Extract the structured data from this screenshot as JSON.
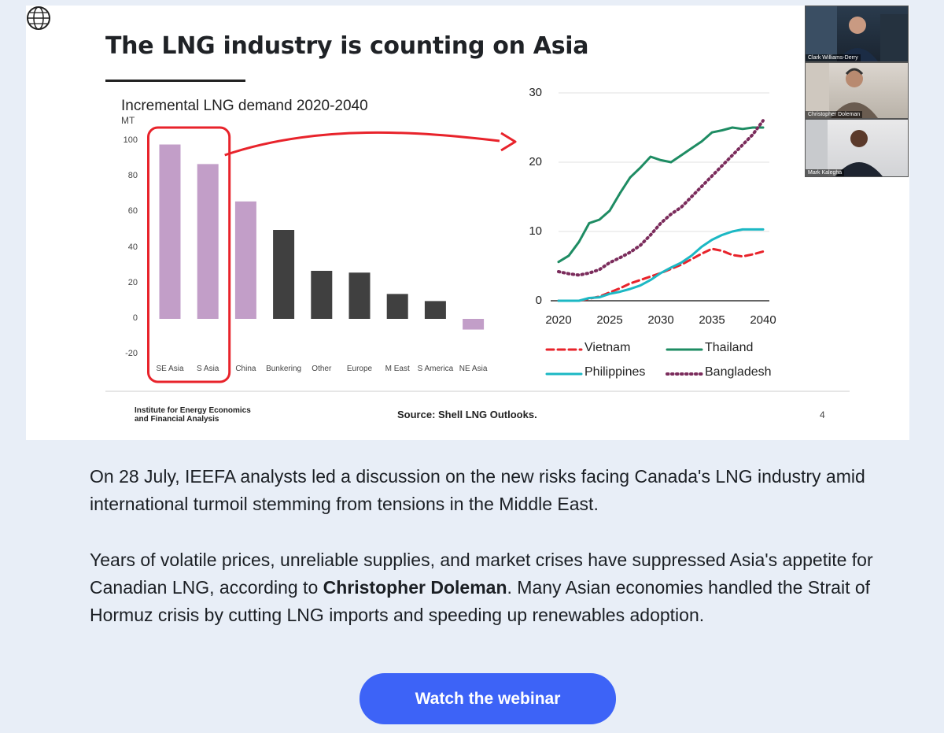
{
  "slide": {
    "title": "The LNG industry is counting on Asia",
    "source": "Source: Shell LNG Outlooks.",
    "page_number": "4",
    "org_name_line1": "Institute for Energy Economics",
    "org_name_line2": "and Financial Analysis"
  },
  "participants": [
    {
      "name": "Clark Williams-Derry"
    },
    {
      "name": "Christopher Doleman"
    },
    {
      "name": "Mark Kalegha"
    }
  ],
  "chart_data": [
    {
      "type": "bar",
      "title": "Incremental LNG demand 2020-2040",
      "ylabel": "MT",
      "ylim": [
        -20,
        100
      ],
      "yticks": [
        "100",
        "80",
        "60",
        "40",
        "20",
        "0",
        "-20"
      ],
      "categories": [
        "SE Asia",
        "S Asia",
        "China",
        "Bunkering",
        "Other",
        "Europe",
        "M East",
        "S America",
        "NE Asia"
      ],
      "values": [
        98,
        87,
        66,
        50,
        27,
        26,
        14,
        10,
        -6
      ],
      "colors": [
        "#c29ec8",
        "#c29ec8",
        "#c29ec8",
        "#404040",
        "#404040",
        "#404040",
        "#404040",
        "#404040",
        "#c29ec8"
      ],
      "highlight": [
        "SE Asia",
        "S Asia"
      ],
      "highlight_color": "#e8232b"
    },
    {
      "type": "line",
      "x": [
        2020,
        2021,
        2022,
        2023,
        2024,
        2025,
        2026,
        2027,
        2028,
        2029,
        2030,
        2031,
        2032,
        2033,
        2034,
        2035,
        2036,
        2037,
        2038,
        2039,
        2040
      ],
      "xticks": [
        "2020",
        "2025",
        "2030",
        "2035",
        "2040"
      ],
      "yticks": [
        "30",
        "20",
        "10",
        "0"
      ],
      "ylim": [
        0,
        30
      ],
      "grid": true,
      "series": [
        {
          "name": "Vietnam",
          "color": "#e8232b",
          "dash": "dashed",
          "values": [
            0,
            0,
            0,
            0.3,
            0.6,
            1.2,
            1.8,
            2.5,
            3.0,
            3.5,
            4.0,
            4.6,
            5.2,
            6.0,
            6.8,
            7.5,
            7.2,
            6.6,
            6.4,
            6.7,
            7.1
          ]
        },
        {
          "name": "Thailand",
          "color": "#1e8c63",
          "dash": "solid",
          "values": [
            5.6,
            6.5,
            8.5,
            11.2,
            11.7,
            13.0,
            15.5,
            17.8,
            19.2,
            20.8,
            20.3,
            20.0,
            21.0,
            22.0,
            23.0,
            24.3,
            24.6,
            25.0,
            24.8,
            25.0,
            25.0
          ]
        },
        {
          "name": "Philippines",
          "color": "#1cb8c4",
          "dash": "solid",
          "values": [
            0,
            0,
            0,
            0.4,
            0.5,
            1.0,
            1.3,
            1.7,
            2.2,
            3.0,
            4.0,
            4.8,
            5.5,
            6.5,
            7.8,
            8.8,
            9.5,
            10.0,
            10.3,
            10.3,
            10.3
          ]
        },
        {
          "name": "Bangladesh",
          "color": "#7b2c5c",
          "dash": "dotted",
          "values": [
            4.2,
            3.9,
            3.7,
            4.0,
            4.5,
            5.5,
            6.2,
            7.0,
            8.0,
            9.5,
            11.2,
            12.5,
            13.5,
            15.0,
            16.5,
            18.0,
            19.5,
            21.0,
            22.5,
            24.0,
            26.0
          ]
        }
      ]
    }
  ],
  "content": {
    "para1": "On 28 July, IEEFA analysts led a discussion on the new risks facing Canada's LNG industry amid international turmoil stemming from tensions in the Middle East.",
    "para2_before": "Years of volatile prices, unreliable supplies, and market crises have suppressed Asia's appetite for Canadian LNG, according to ",
    "para2_bold": "Christopher Doleman",
    "para2_after": ". Many Asian economies handled the Strait of Hormuz crisis by cutting LNG imports and speeding up renewables adoption.",
    "cta_label": "Watch the webinar"
  }
}
